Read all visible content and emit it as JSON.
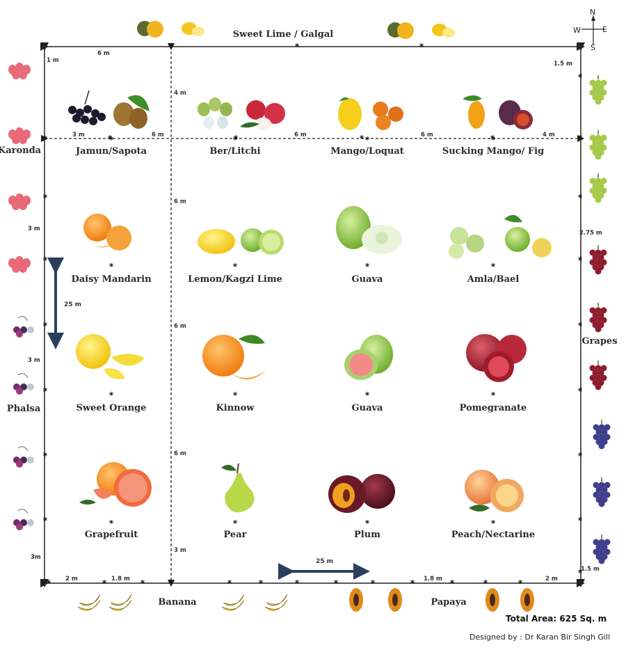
{
  "border_labels": {
    "top": "Sweet Lime / Galgal",
    "left_upper": "Karonda",
    "left_lower": "Phalsa",
    "right": "Grapes",
    "bottom_left": "Banana",
    "bottom_right": "Papaya"
  },
  "compass": {
    "n": "N",
    "s": "S",
    "e": "E",
    "w": "W"
  },
  "dimensions": {
    "top_6m": "6 m",
    "top_1m": "1 m",
    "top_right_1_5m": "1.5 m",
    "row1_depth_4m": "4 m",
    "row1_3m": "3 m",
    "row1_6m_a": "6 m",
    "row1_6m_b": "6 m",
    "row1_6m_c": "6 m",
    "row1_4m": "4 m",
    "col_6m_a": "6 m",
    "col_6m_b": "6 m",
    "col_6m_c": "6 m",
    "col_3m": "3 m",
    "left_3m_a": "3 m",
    "left_3m_b": "3 m",
    "left_3m_c": "3m",
    "left_25m": "25 m",
    "right_2_75m": "2.75 m",
    "right_1_5m": "1.5 m",
    "bottom_2m_left": "2 m",
    "bottom_1_8m_left": "1.8 m",
    "bottom_25m": "25 m",
    "bottom_1_8m_right": "1.8 m",
    "bottom_2m_right": "2 m"
  },
  "plots": [
    {
      "label": "Jamun/Sapota"
    },
    {
      "label": "Ber/Litchi"
    },
    {
      "label": "Mango/Loquat"
    },
    {
      "label": "Sucking Mango/ Fig"
    },
    {
      "label": "Daisy Mandarin"
    },
    {
      "label": "Lemon/Kagzi Lime"
    },
    {
      "label": "Guava"
    },
    {
      "label": "Amla/Bael"
    },
    {
      "label": "Sweet Orange"
    },
    {
      "label": "Kinnow"
    },
    {
      "label": "Guava"
    },
    {
      "label": "Pomegranate"
    },
    {
      "label": "Grapefruit"
    },
    {
      "label": "Pear"
    },
    {
      "label": "Plum"
    },
    {
      "label": "Peach/Nectarine"
    }
  ],
  "footer": {
    "total_area": "Total Area: 625 Sq. m",
    "designer": "Designed by : Dr Karan Bir Singh Gill"
  },
  "colors": {
    "border": "#222222",
    "arrow": "#2b3f5c",
    "karonda": "#e86a78",
    "phalsa": "#8a3a7a",
    "grapes_green": "#a6c94a",
    "grapes_red": "#8e1e2e",
    "grapes_blue": "#3f3f8c",
    "banana": "#f2d21c",
    "papaya": "#e08a1e"
  }
}
